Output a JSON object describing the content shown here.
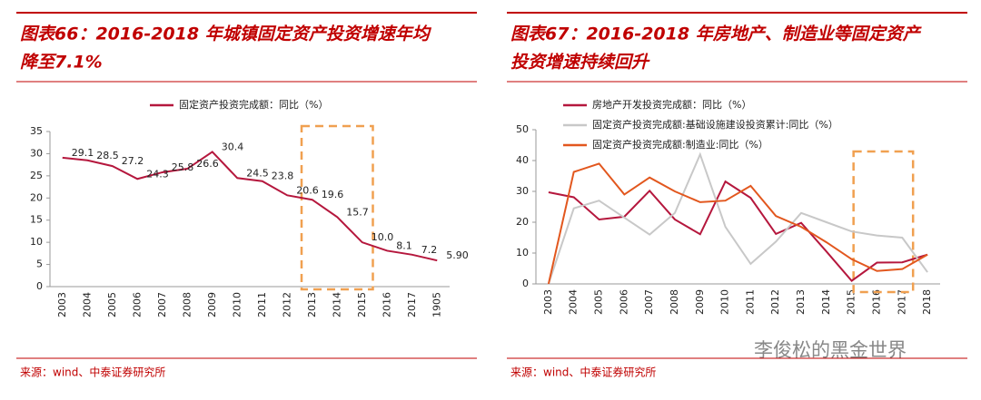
{
  "chart_data": [
    {
      "type": "line",
      "title_lines": [
        "图表66：2016-2018 年城镇固定资产投资增速年均",
        "降至7.1%"
      ],
      "categories": [
        "2003",
        "2004",
        "2005",
        "2006",
        "2007",
        "2008",
        "2009",
        "2010",
        "2011",
        "2012",
        "2013",
        "2014",
        "2015",
        "2016",
        "2017",
        "1905"
      ],
      "series": [
        {
          "name": "固定资产投资完成额：同比（%）",
          "color": "#b5173d",
          "values": [
            29.1,
            28.5,
            27.2,
            24.3,
            25.8,
            26.6,
            30.4,
            24.5,
            23.8,
            20.6,
            19.6,
            15.7,
            10.0,
            8.1,
            7.2,
            5.9
          ],
          "value_labels": [
            "29.1",
            "28.5",
            "27.2",
            "24.3",
            "25.8",
            "26.6",
            "30.4",
            "24.5",
            "23.8",
            "20.6",
            "19.6",
            "15.7",
            "10.0",
            "8.1",
            "7.2",
            "5.90"
          ]
        }
      ],
      "ylim": [
        0,
        35
      ],
      "yticks": [
        0,
        5,
        10,
        15,
        20,
        25,
        30,
        35
      ],
      "source": "来源：wind、中泰证券研究所"
    },
    {
      "type": "line",
      "title_lines": [
        "图表67：2016-2018 年房地产、制造业等固定资产",
        "投资增速持续回升"
      ],
      "categories": [
        "2003",
        "2004",
        "2005",
        "2006",
        "2007",
        "2008",
        "2009",
        "2010",
        "2011",
        "2012",
        "2013",
        "2014",
        "2015",
        "2016",
        "2017",
        "2018"
      ],
      "series": [
        {
          "name": "房地产开发投资完成额：同比（%）",
          "color": "#b5173d",
          "values": [
            29.7,
            28.1,
            20.9,
            21.8,
            30.2,
            20.9,
            16.1,
            33.2,
            27.9,
            16.2,
            19.8,
            10.5,
            1.0,
            6.9,
            7.0,
            9.5
          ]
        },
        {
          "name": "固定资产投资完成额:基础设施建设投资累计:同比（%）",
          "color": "#c8c8c8",
          "values": [
            0,
            24.5,
            27,
            21.5,
            16,
            23,
            42,
            18.5,
            6.5,
            13.7,
            23,
            20,
            17,
            15.7,
            15,
            3.8
          ]
        },
        {
          "name": "固定资产投资完成额:制造业:同比（%）",
          "color": "#e2571e",
          "values": [
            0,
            36.3,
            39,
            29,
            34.5,
            30,
            26.5,
            27,
            31.8,
            22,
            18.5,
            13.5,
            8,
            4.2,
            4.8,
            9.5
          ]
        }
      ],
      "ylim": [
        0,
        50
      ],
      "yticks": [
        0,
        10,
        20,
        30,
        40,
        50
      ],
      "source": "来源：wind、中泰证券研究所"
    }
  ],
  "watermark": "李俊松的黑金世界"
}
